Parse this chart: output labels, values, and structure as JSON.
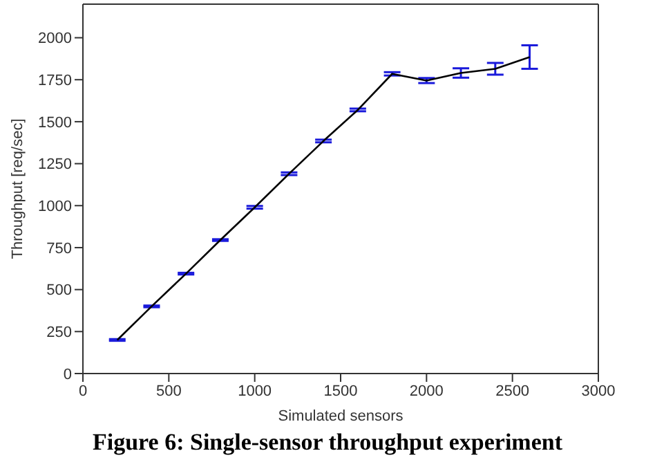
{
  "chart_data": {
    "type": "line",
    "xlabel": "Simulated sensors",
    "ylabel": "Throughput [req/sec]",
    "x": [
      200,
      400,
      600,
      800,
      1000,
      1200,
      1400,
      1600,
      1800,
      2000,
      2200,
      2400,
      2600
    ],
    "series": [
      {
        "color": "#000000",
        "values": [
          200,
          400,
          595,
          795,
          990,
          1190,
          1385,
          1570,
          1785,
          1745,
          1790,
          1815,
          1885
        ],
        "errors": [
          5,
          5,
          5,
          5,
          8,
          8,
          8,
          8,
          10,
          15,
          28,
          35,
          70
        ]
      }
    ],
    "xlim": [
      0,
      3000
    ],
    "xticks": [
      0,
      500,
      1000,
      1500,
      2000,
      2500,
      3000
    ],
    "ylim": [
      0,
      2200
    ],
    "yticks": [
      0,
      250,
      500,
      750,
      1000,
      1250,
      1500,
      1750,
      2000
    ],
    "grid": false,
    "legend": false,
    "marker": "none",
    "line_style": "solid",
    "annotations": [
      "Figure 6: Single-sensor throughput experiment"
    ]
  }
}
